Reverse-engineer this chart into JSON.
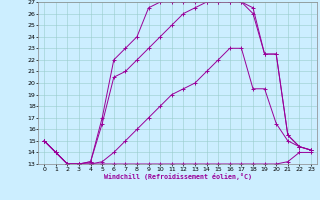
{
  "xlabel": "Windchill (Refroidissement éolien,°C)",
  "xlim": [
    -0.5,
    23.5
  ],
  "ylim": [
    13,
    27
  ],
  "yticks": [
    13,
    14,
    15,
    16,
    17,
    18,
    19,
    20,
    21,
    22,
    23,
    24,
    25,
    26,
    27
  ],
  "xticks": [
    0,
    1,
    2,
    3,
    4,
    5,
    6,
    7,
    8,
    9,
    10,
    11,
    12,
    13,
    14,
    15,
    16,
    17,
    18,
    19,
    20,
    21,
    22,
    23
  ],
  "background_color": "#cceeff",
  "line_color": "#990099",
  "grid_color": "#99cccc",
  "series": [
    {
      "x": [
        0,
        1,
        2,
        3,
        4,
        5,
        6,
        7,
        8,
        9,
        10,
        11,
        12,
        13,
        14,
        15,
        16,
        17,
        18,
        19,
        20,
        21,
        22,
        23
      ],
      "y": [
        15.0,
        14.0,
        13.0,
        13.0,
        13.0,
        13.0,
        13.0,
        13.0,
        13.0,
        13.0,
        13.0,
        13.0,
        13.0,
        13.0,
        13.0,
        13.0,
        13.0,
        13.0,
        13.0,
        13.0,
        13.0,
        13.2,
        14.0,
        14.0
      ]
    },
    {
      "x": [
        0,
        1,
        2,
        3,
        4,
        5,
        6,
        7,
        8,
        9,
        10,
        11,
        12,
        13,
        14,
        15,
        16,
        17,
        18,
        19,
        20,
        21,
        22,
        23
      ],
      "y": [
        15.0,
        14.0,
        13.0,
        13.0,
        13.0,
        13.2,
        14.0,
        15.0,
        16.0,
        17.0,
        18.0,
        19.0,
        19.5,
        20.0,
        21.0,
        22.0,
        23.0,
        23.0,
        19.5,
        19.5,
        16.5,
        15.0,
        14.5,
        14.2
      ]
    },
    {
      "x": [
        0,
        1,
        2,
        3,
        4,
        5,
        6,
        7,
        8,
        9,
        10,
        11,
        12,
        13,
        14,
        15,
        16,
        17,
        18,
        19,
        20,
        21,
        22,
        23
      ],
      "y": [
        15.0,
        14.0,
        13.0,
        13.0,
        13.2,
        16.5,
        20.5,
        21.0,
        22.0,
        23.0,
        24.0,
        25.0,
        26.0,
        26.5,
        27.0,
        27.0,
        27.0,
        27.0,
        26.0,
        22.5,
        22.5,
        15.5,
        14.5,
        14.2
      ]
    },
    {
      "x": [
        0,
        1,
        2,
        3,
        4,
        5,
        6,
        7,
        8,
        9,
        10,
        11,
        12,
        13,
        14,
        15,
        16,
        17,
        18,
        19,
        20,
        21,
        22,
        23
      ],
      "y": [
        15.0,
        14.0,
        13.0,
        13.0,
        13.2,
        17.0,
        22.0,
        23.0,
        24.0,
        26.5,
        27.0,
        27.0,
        27.0,
        27.0,
        27.0,
        27.0,
        27.0,
        27.0,
        26.5,
        22.5,
        22.5,
        15.5,
        14.5,
        14.2
      ]
    }
  ]
}
